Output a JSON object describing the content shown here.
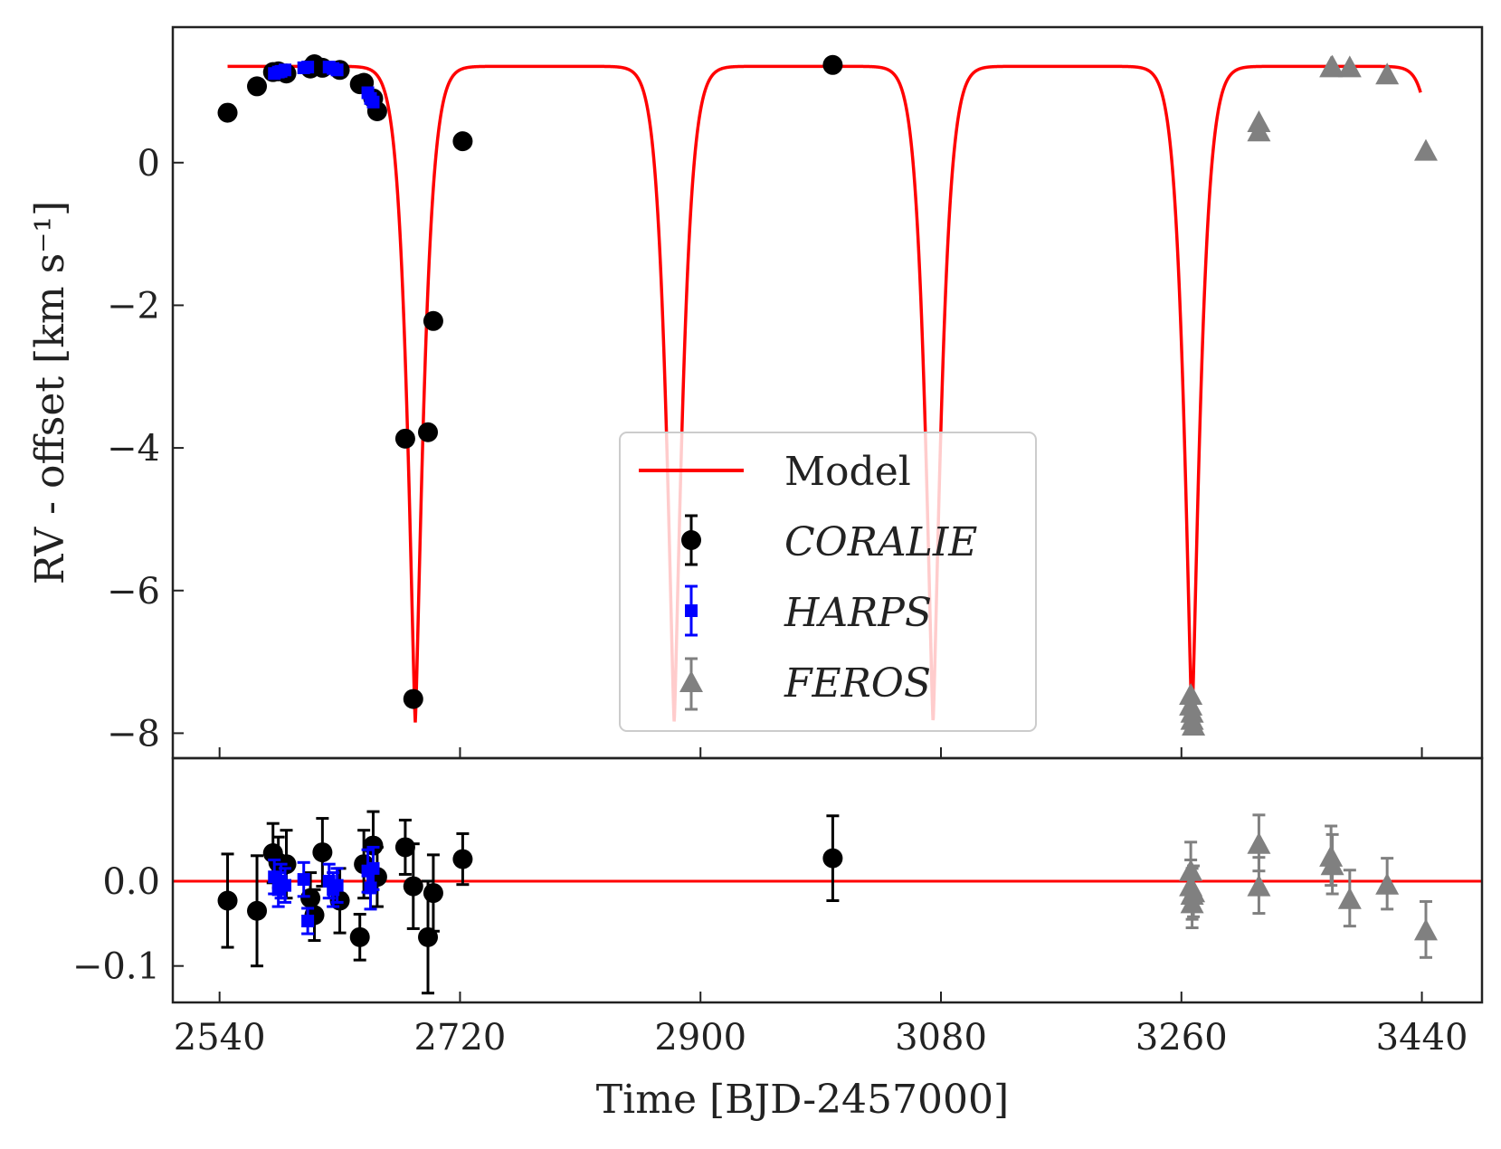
{
  "chart_data": {
    "type": "scatter",
    "title": "",
    "xlabel": "Time [BJD-2457000]",
    "xlim": [
      2505,
      3485
    ],
    "xticks": [
      2540,
      2720,
      2900,
      3080,
      3260,
      3440
    ],
    "x_tick_labels": [
      "2540",
      "2720",
      "2900",
      "3080",
      "3260",
      "3440"
    ],
    "top_panel": {
      "ylabel": "RV - offset [km s⁻¹]",
      "ylim": [
        -8.35,
        1.9
      ],
      "yticks": [
        0,
        -2,
        -4,
        -6,
        -8
      ],
      "y_tick_labels": [
        "0",
        "−2",
        "−4",
        "−6",
        "−8"
      ]
    },
    "bottom_panel": {
      "ylabel": "",
      "ylim": [
        -0.143,
        0.145
      ],
      "yticks": [
        0.0,
        -0.1
      ],
      "y_tick_labels": [
        "0.0",
        "−0.1"
      ],
      "reference_line": 0.0
    },
    "model": {
      "name": "Model",
      "color": "#ff0000",
      "period": 193.8,
      "t_min": 2686.5,
      "k_low": -7.85,
      "k_high": 1.35,
      "width": 8.9,
      "t_start": 2546,
      "t_end": 3439
    },
    "legend": {
      "position": "lower-center",
      "entries": [
        "Model",
        "CORALIE",
        "HARPS",
        "FEROS"
      ]
    },
    "series": [
      {
        "name": "CORALIE",
        "color": "#000000",
        "marker": "circle",
        "x": [
          2546,
          2568,
          2580,
          2584,
          2590,
          2608,
          2611,
          2617,
          2630,
          2645,
          2648,
          2655,
          2658,
          2679,
          2685,
          2696,
          2700,
          2722,
          2999
        ],
        "y": [
          0.7,
          1.07,
          1.27,
          1.28,
          1.25,
          1.32,
          1.38,
          1.33,
          1.3,
          1.1,
          1.12,
          0.9,
          0.72,
          -3.87,
          -7.52,
          -3.78,
          -2.22,
          0.3,
          1.37
        ],
        "residuals": [
          -0.023,
          -0.035,
          0.033,
          0.022,
          0.02,
          -0.02,
          -0.04,
          0.034,
          -0.023,
          -0.066,
          0.02,
          0.042,
          0.005,
          0.04,
          -0.006,
          -0.066,
          -0.014,
          0.026,
          0.027
        ],
        "residual_errors": [
          0.055,
          0.065,
          0.035,
          0.03,
          0.04,
          0.03,
          0.03,
          0.04,
          0.038,
          0.027,
          0.04,
          0.04,
          0.035,
          0.032,
          0.05,
          0.066,
          0.045,
          0.03,
          0.05
        ]
      },
      {
        "name": "HARPS",
        "color": "#0000ff",
        "marker": "square",
        "x": [
          2581,
          2584,
          2586,
          2589,
          2603,
          2606,
          2622,
          2625,
          2628,
          2651,
          2653,
          2655
        ],
        "y": [
          1.25,
          1.27,
          1.28,
          1.3,
          1.33,
          1.34,
          1.34,
          1.32,
          1.3,
          0.98,
          0.9,
          0.85
        ],
        "residuals": [
          0.005,
          -0.01,
          0.0,
          -0.005,
          0.002,
          -0.047,
          0.0,
          -0.01,
          -0.005,
          0.012,
          -0.008,
          0.015
        ],
        "residual_errors": [
          0.02,
          0.02,
          0.02,
          0.02,
          0.02,
          0.015,
          0.02,
          0.02,
          0.02,
          0.025,
          0.025,
          0.025
        ]
      },
      {
        "name": "FEROS",
        "color": "#808080",
        "marker": "triangle",
        "x": [
          3267,
          3267,
          3268,
          3268,
          3269,
          3318,
          3318,
          3372,
          3373,
          3386,
          3414,
          3443
        ],
        "y": [
          -7.45,
          -7.6,
          -7.7,
          -7.8,
          -7.88,
          0.45,
          0.58,
          1.35,
          1.36,
          1.35,
          1.25,
          0.18
        ],
        "residuals": [
          0.013,
          -0.005,
          -0.015,
          -0.025,
          -0.012,
          0.045,
          -0.005,
          0.03,
          0.02,
          -0.02,
          -0.003,
          -0.057
        ],
        "residual_errors": [
          0.033,
          0.03,
          0.03,
          0.03,
          0.03,
          0.033,
          0.033,
          0.035,
          0.035,
          0.033,
          0.03,
          0.033
        ]
      }
    ]
  }
}
